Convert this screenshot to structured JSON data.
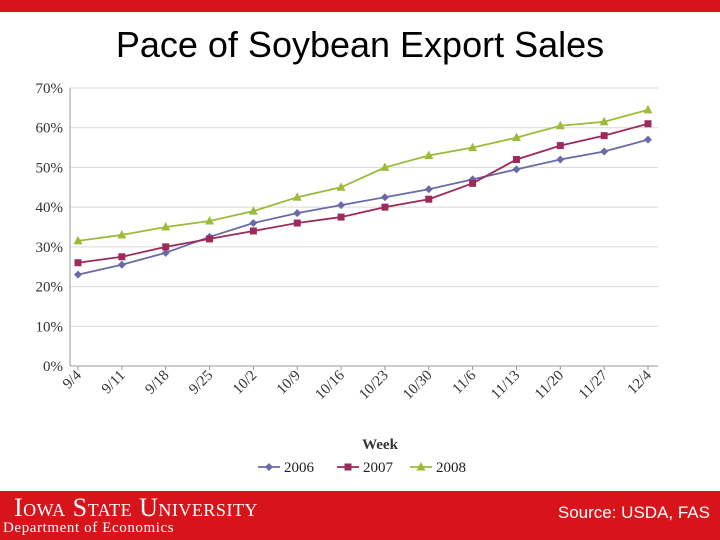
{
  "slide": {
    "title": "Pace of Soybean Export Sales",
    "university": "Iowa State University",
    "department": "Department of Economics",
    "source": "Source: USDA, FAS"
  },
  "colors": {
    "brand_red": "#d7141a",
    "series_2006": "#6a6aa8",
    "series_2007": "#9c2a5a",
    "series_2008": "#9dbb3a"
  },
  "chart_data": {
    "type": "line",
    "title": "Pace of Soybean Export Sales",
    "xlabel": "Week",
    "ylabel": "",
    "ylim": [
      0,
      70
    ],
    "y_ticks": [
      "0%",
      "10%",
      "20%",
      "30%",
      "40%",
      "50%",
      "60%",
      "70%"
    ],
    "grid": true,
    "legend_position": "bottom",
    "categories": [
      "9/4",
      "9/11",
      "9/18",
      "9/25",
      "10/2",
      "10/9",
      "10/16",
      "10/23",
      "10/30",
      "11/6",
      "11/13",
      "11/20",
      "11/27",
      "12/4"
    ],
    "series": [
      {
        "name": "2006",
        "marker": "diamond",
        "color": "#6a6aa8",
        "values": [
          23,
          25.5,
          28.5,
          32.5,
          36,
          38.5,
          40.5,
          42.5,
          44.5,
          47,
          49.5,
          52,
          54,
          57
        ]
      },
      {
        "name": "2007",
        "marker": "square",
        "color": "#9c2a5a",
        "values": [
          26,
          27.5,
          30,
          32,
          34,
          36,
          37.5,
          40,
          42,
          46,
          52,
          55.5,
          58,
          61
        ]
      },
      {
        "name": "2008",
        "marker": "triangle",
        "color": "#9dbb3a",
        "values": [
          31.5,
          33,
          35,
          36.5,
          39,
          42.5,
          45,
          50,
          53,
          55,
          57.5,
          60.5,
          61.5,
          64.5
        ]
      }
    ]
  }
}
